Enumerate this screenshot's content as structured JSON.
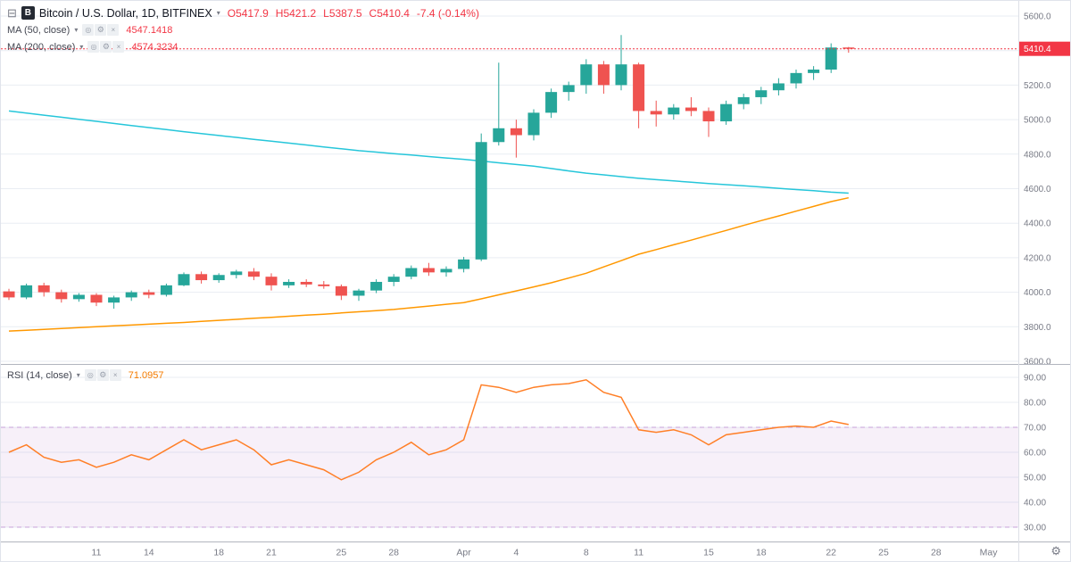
{
  "header": {
    "symbol_title": "Bitcoin / U.S. Dollar, 1D, BITFINEX",
    "open": "O5417.9",
    "high": "H5421.2",
    "low": "L5387.5",
    "close": "C5410.4",
    "change": "-7.4 (-0.14%)"
  },
  "indicators": {
    "ma50": {
      "label": "MA (50, close)",
      "value": "4547.1418",
      "color": "#f23645"
    },
    "ma200": {
      "label": "MA (200, close)",
      "value": "4574.3234",
      "color": "#f23645"
    },
    "rsi": {
      "label": "RSI (14, close)",
      "value": "71.0957",
      "color": "#f57c00"
    }
  },
  "icons": {
    "panel_toggle": "⊟",
    "logo_letter": "B",
    "caret": "▾",
    "visibility": "◎",
    "gear": "⚙",
    "close": "×"
  },
  "price_scale": {
    "current_price_label": "5410.4"
  },
  "colors": {
    "candle_up": "#26a69a",
    "candle_down": "#ef5350",
    "ma50_line": "#ff9800",
    "ma200_line": "#26c6da",
    "rsi_line": "#ff7f27",
    "current_price": "#f23645",
    "ohlc_text": "#f23645",
    "grid": "#e9edf3",
    "axis_text": "#787b86",
    "separator": "#b2b5be",
    "rsi_band_fill": "rgba(156,66,179,0.08)",
    "rsi_band_edge": "rgba(165,94,195,0.5)"
  },
  "chart_data": {
    "type": "candlestick",
    "title": "Bitcoin / U.S. Dollar, 1D, BITFINEX",
    "pair": "BTC/USD",
    "exchange": "BITFINEX",
    "interval": "1D",
    "current_price": 5410.4,
    "price_axis": {
      "min": 3600,
      "max": 5600,
      "step": 200,
      "tick_labels": [
        "5600.0",
        "5400.0",
        "5200.0",
        "5000.0",
        "4800.0",
        "4600.0",
        "4400.0",
        "4200.0",
        "4000.0",
        "3800.0",
        "3600.0"
      ]
    },
    "rsi_axis": {
      "min": 30,
      "max": 90,
      "step": 10,
      "band": [
        30,
        70
      ],
      "tick_labels": [
        "90.00",
        "80.00",
        "70.00",
        "60.00",
        "50.00",
        "40.00",
        "30.00"
      ]
    },
    "dates": [
      "Mar 6",
      "Mar 7",
      "Mar 8",
      "Mar 9",
      "Mar 10",
      "Mar 11",
      "Mar 12",
      "Mar 13",
      "Mar 14",
      "Mar 15",
      "Mar 16",
      "Mar 17",
      "Mar 18",
      "Mar 19",
      "Mar 20",
      "Mar 21",
      "Mar 22",
      "Mar 23",
      "Mar 24",
      "Mar 25",
      "Mar 26",
      "Mar 27",
      "Mar 28",
      "Mar 29",
      "Mar 30",
      "Mar 31",
      "Apr 1",
      "Apr 2",
      "Apr 3",
      "Apr 4",
      "Apr 5",
      "Apr 6",
      "Apr 7",
      "Apr 8",
      "Apr 9",
      "Apr 10",
      "Apr 11",
      "Apr 12",
      "Apr 13",
      "Apr 14",
      "Apr 15",
      "Apr 16",
      "Apr 17",
      "Apr 18",
      "Apr 19",
      "Apr 20",
      "Apr 21",
      "Apr 22",
      "Apr 23"
    ],
    "candles": [
      [
        4005,
        4020,
        3955,
        3970
      ],
      [
        3970,
        4050,
        3960,
        4040
      ],
      [
        4040,
        4055,
        3975,
        4000
      ],
      [
        4000,
        4015,
        3940,
        3960
      ],
      [
        3960,
        3995,
        3945,
        3985
      ],
      [
        3985,
        3995,
        3920,
        3940
      ],
      [
        3940,
        3980,
        3905,
        3970
      ],
      [
        3970,
        4010,
        3950,
        4000
      ],
      [
        4000,
        4015,
        3965,
        3985
      ],
      [
        3985,
        4050,
        3975,
        4040
      ],
      [
        4040,
        4115,
        4035,
        4105
      ],
      [
        4105,
        4120,
        4050,
        4070
      ],
      [
        4070,
        4110,
        4055,
        4100
      ],
      [
        4100,
        4130,
        4080,
        4120
      ],
      [
        4120,
        4140,
        4070,
        4090
      ],
      [
        4090,
        4110,
        4010,
        4040
      ],
      [
        4040,
        4075,
        4025,
        4060
      ],
      [
        4060,
        4075,
        4030,
        4045
      ],
      [
        4045,
        4065,
        4020,
        4035
      ],
      [
        4035,
        4045,
        3955,
        3980
      ],
      [
        3980,
        4020,
        3950,
        4010
      ],
      [
        4010,
        4075,
        3995,
        4060
      ],
      [
        4060,
        4105,
        4035,
        4090
      ],
      [
        4090,
        4155,
        4075,
        4140
      ],
      [
        4140,
        4170,
        4095,
        4115
      ],
      [
        4115,
        4150,
        4090,
        4135
      ],
      [
        4135,
        4205,
        4115,
        4190
      ],
      [
        4190,
        4920,
        4180,
        4870
      ],
      [
        4870,
        5330,
        4850,
        4950
      ],
      [
        4950,
        5000,
        4780,
        4910
      ],
      [
        4910,
        5060,
        4880,
        5040
      ],
      [
        5040,
        5180,
        5010,
        5160
      ],
      [
        5160,
        5220,
        5110,
        5200
      ],
      [
        5200,
        5350,
        5150,
        5320
      ],
      [
        5320,
        5340,
        5150,
        5200
      ],
      [
        5200,
        5490,
        5170,
        5320
      ],
      [
        5320,
        5330,
        4950,
        5050
      ],
      [
        5050,
        5110,
        4960,
        5030
      ],
      [
        5030,
        5090,
        5000,
        5070
      ],
      [
        5070,
        5130,
        5020,
        5050
      ],
      [
        5050,
        5070,
        4900,
        4990
      ],
      [
        4990,
        5110,
        4970,
        5090
      ],
      [
        5090,
        5150,
        5060,
        5130
      ],
      [
        5130,
        5190,
        5090,
        5170
      ],
      [
        5170,
        5240,
        5140,
        5210
      ],
      [
        5210,
        5290,
        5180,
        5270
      ],
      [
        5270,
        5310,
        5230,
        5290
      ],
      [
        5290,
        5442,
        5270,
        5417.8
      ],
      [
        5417.9,
        5421.2,
        5387.5,
        5410.4
      ]
    ],
    "ma50": [
      3775,
      3780,
      3785,
      3790,
      3795,
      3800,
      3805,
      3810,
      3815,
      3820,
      3825,
      3831,
      3837,
      3843,
      3849,
      3855,
      3861,
      3867,
      3873,
      3880,
      3887,
      3893,
      3900,
      3910,
      3920,
      3930,
      3940,
      3962,
      3985,
      4008,
      4031,
      4055,
      4082,
      4110,
      4147,
      4183,
      4220,
      4247,
      4275,
      4302,
      4330,
      4358,
      4387,
      4415,
      4442,
      4470,
      4497,
      4525,
      4547.1418
    ],
    "ma200": [
      5050,
      5038,
      5026,
      5014,
      5002,
      4990,
      4978,
      4966,
      4954,
      4942,
      4930,
      4919,
      4908,
      4897,
      4886,
      4875,
      4864,
      4853,
      4842,
      4831,
      4820,
      4812,
      4803,
      4795,
      4786,
      4778,
      4770,
      4760,
      4750,
      4740,
      4730,
      4717,
      4703,
      4690,
      4680,
      4670,
      4660,
      4652,
      4645,
      4637,
      4630,
      4623,
      4617,
      4610,
      4602,
      4595,
      4588,
      4580,
      4574.3234
    ],
    "rsi": [
      60,
      63,
      58,
      56,
      57,
      54,
      56,
      59,
      57,
      61,
      65,
      61,
      63,
      65,
      61,
      55,
      57,
      55,
      53,
      49,
      52,
      57,
      60,
      64,
      59,
      61,
      65,
      87,
      86,
      84,
      86,
      87,
      87.5,
      89,
      84,
      82,
      69,
      68,
      69,
      67,
      63,
      67,
      68,
      69,
      70,
      70.5,
      70,
      72.5,
      71.0957
    ],
    "time_ticks": [
      {
        "label": "11",
        "day": 5
      },
      {
        "label": "14",
        "day": 8
      },
      {
        "label": "18",
        "day": 12
      },
      {
        "label": "21",
        "day": 15
      },
      {
        "label": "25",
        "day": 19
      },
      {
        "label": "28",
        "day": 22
      },
      {
        "label": "Apr",
        "day": 26
      },
      {
        "label": "4",
        "day": 29
      },
      {
        "label": "8",
        "day": 33
      },
      {
        "label": "11",
        "day": 36
      },
      {
        "label": "15",
        "day": 40
      },
      {
        "label": "18",
        "day": 43
      },
      {
        "label": "22",
        "day": 47
      },
      {
        "label": "25",
        "day": 50
      },
      {
        "label": "28",
        "day": 53
      },
      {
        "label": "May",
        "day": 56
      }
    ]
  }
}
